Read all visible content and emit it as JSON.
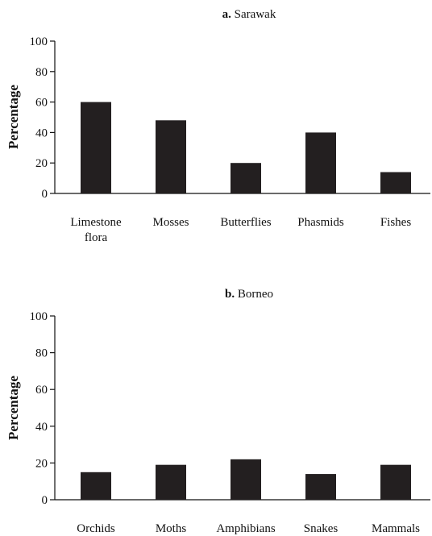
{
  "chart_data": [
    {
      "type": "bar",
      "panel_letter": "a.",
      "title": "Sarawak",
      "ylabel": "Percentage",
      "xlabel": "",
      "ylim": [
        0,
        100
      ],
      "yticks": [
        "0",
        "20",
        "40",
        "60",
        "80",
        "100"
      ],
      "grid": false,
      "categories": [
        [
          "Limestone",
          "flora"
        ],
        [
          "Mosses"
        ],
        [
          "Butterflies"
        ],
        [
          "Phasmids"
        ],
        [
          "Fishes"
        ]
      ],
      "values": [
        60,
        48,
        20,
        40,
        14
      ],
      "bar_color": "#231f20"
    },
    {
      "type": "bar",
      "panel_letter": "b.",
      "title": "Borneo",
      "ylabel": "Percentage",
      "xlabel": "",
      "ylim": [
        0,
        100
      ],
      "yticks": [
        "0",
        "20",
        "40",
        "60",
        "80",
        "100"
      ],
      "grid": false,
      "categories": [
        [
          "Orchids"
        ],
        [
          "Moths"
        ],
        [
          "Amphibians"
        ],
        [
          "Snakes"
        ],
        [
          "Mammals"
        ]
      ],
      "values": [
        15,
        19,
        22,
        14,
        19
      ],
      "bar_color": "#231f20"
    }
  ]
}
